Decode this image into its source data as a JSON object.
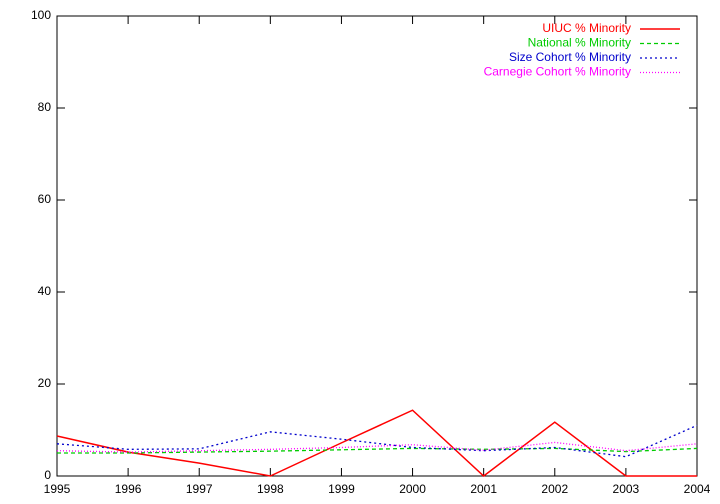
{
  "chart_data": {
    "type": "line",
    "x": [
      1995,
      1996,
      1997,
      1998,
      1999,
      2000,
      2001,
      2002,
      2003,
      2004
    ],
    "series": [
      {
        "name": "UIUC % Minority",
        "color": "#ff0000",
        "values": [
          8.7,
          5.2,
          2.8,
          0,
          7.2,
          14.3,
          0,
          11.7,
          0,
          0
        ]
      },
      {
        "name": "National % Minority",
        "color": "#00cc00",
        "values": [
          5.0,
          5.0,
          5.2,
          5.4,
          5.7,
          6.0,
          5.8,
          6.0,
          5.3,
          6.0
        ]
      },
      {
        "name": "Size Cohort % Minority",
        "color": "#0000cc",
        "values": [
          7.0,
          5.8,
          5.9,
          9.6,
          8.0,
          6.2,
          5.5,
          6.2,
          4.2,
          11.0
        ]
      },
      {
        "name": "Carnegie Cohort % Minority",
        "color": "#ff00ff",
        "values": [
          5.5,
          5.2,
          5.5,
          5.8,
          6.2,
          6.8,
          5.6,
          7.3,
          5.5,
          7.0
        ]
      }
    ],
    "xlim": [
      1995,
      2004
    ],
    "xticks": [
      1995,
      1996,
      1997,
      1998,
      1999,
      2000,
      2001,
      2002,
      2003,
      2004
    ],
    "ylim": [
      0,
      100
    ],
    "yticks": [
      0,
      20,
      40,
      60,
      80,
      100
    ],
    "legend": "top-right"
  }
}
